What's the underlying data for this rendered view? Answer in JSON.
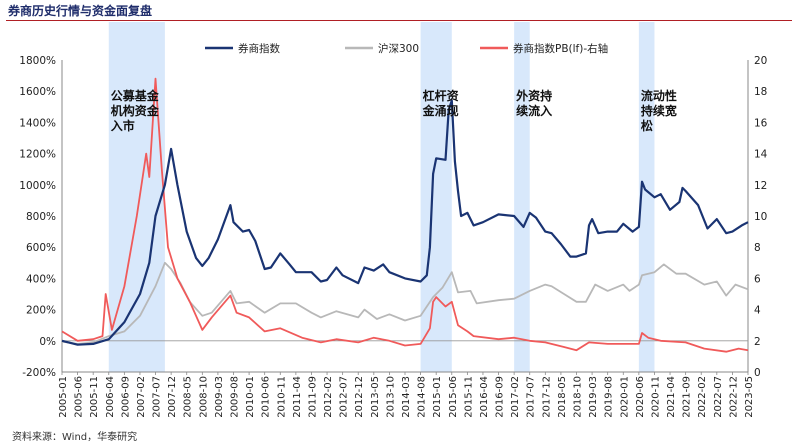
{
  "page": {
    "title": "券商历史行情与资金面复盘",
    "source": "资料来源：Wind，华泰研究"
  },
  "chart_data": {
    "type": "line",
    "legend": [
      "券商指数",
      "沪深300",
      "券商指数PB(lf)-右轴"
    ],
    "colors": {
      "broker": "#1a3473",
      "hs300": "#b8b8b8",
      "pb": "#f05a5a",
      "shade": "#d8e8fb"
    },
    "y_left": {
      "min": -200,
      "max": 1800,
      "step": 200,
      "suffix": "%"
    },
    "y_right": {
      "min": 0,
      "max": 20,
      "step": 2
    },
    "x_labels": [
      "2005-01",
      "2005-06",
      "2005-11",
      "2006-04",
      "2006-09",
      "2007-02",
      "2007-07",
      "2007-12",
      "2008-05",
      "2008-10",
      "2009-03",
      "2009-08",
      "2010-01",
      "2010-06",
      "2010-11",
      "2011-04",
      "2011-09",
      "2012-02",
      "2012-07",
      "2012-12",
      "2013-05",
      "2013-10",
      "2014-03",
      "2014-08",
      "2015-01",
      "2015-06",
      "2015-11",
      "2016-04",
      "2016-09",
      "2017-02",
      "2017-07",
      "2017-12",
      "2018-05",
      "2018-10",
      "2019-03",
      "2019-08",
      "2020-01",
      "2020-06",
      "2020-11",
      "2021-04",
      "2021-09",
      "2022-02",
      "2022-07",
      "2022-12",
      "2023-05"
    ],
    "shaded_periods": [
      {
        "start": "2006-04",
        "end": "2007-10",
        "label": "公募基金机构资金入市",
        "lines": [
          "公募基金",
          "机构资金",
          "入市"
        ]
      },
      {
        "start": "2014-08",
        "end": "2015-06",
        "label": "杠杆资金涌现",
        "lines": [
          "杠杆资",
          "金涌现"
        ]
      },
      {
        "start": "2017-02",
        "end": "2017-07",
        "label": "外资持续流入",
        "lines": [
          "外资持",
          "续流入"
        ]
      },
      {
        "start": "2020-06",
        "end": "2020-11",
        "label": "流动性持续宽松",
        "lines": [
          "流动性",
          "持续宽",
          "松"
        ]
      }
    ],
    "series": [
      {
        "name": "券商指数",
        "axis": "left",
        "points": [
          [
            "2005-01",
            0
          ],
          [
            "2005-06",
            -25
          ],
          [
            "2005-11",
            -20
          ],
          [
            "2006-04",
            10
          ],
          [
            "2006-09",
            120
          ],
          [
            "2007-02",
            300
          ],
          [
            "2007-05",
            500
          ],
          [
            "2007-07",
            800
          ],
          [
            "2007-10",
            1000
          ],
          [
            "2007-12",
            1230
          ],
          [
            "2008-02",
            1000
          ],
          [
            "2008-05",
            700
          ],
          [
            "2008-08",
            530
          ],
          [
            "2008-10",
            480
          ],
          [
            "2008-12",
            530
          ],
          [
            "2009-03",
            650
          ],
          [
            "2009-07",
            870
          ],
          [
            "2009-08",
            760
          ],
          [
            "2009-11",
            700
          ],
          [
            "2010-01",
            710
          ],
          [
            "2010-03",
            640
          ],
          [
            "2010-06",
            460
          ],
          [
            "2010-08",
            470
          ],
          [
            "2010-11",
            560
          ],
          [
            "2011-02",
            490
          ],
          [
            "2011-04",
            440
          ],
          [
            "2011-09",
            440
          ],
          [
            "2011-12",
            380
          ],
          [
            "2012-02",
            390
          ],
          [
            "2012-05",
            470
          ],
          [
            "2012-07",
            420
          ],
          [
            "2012-12",
            370
          ],
          [
            "2013-02",
            470
          ],
          [
            "2013-05",
            450
          ],
          [
            "2013-08",
            490
          ],
          [
            "2013-10",
            440
          ],
          [
            "2014-03",
            400
          ],
          [
            "2014-08",
            380
          ],
          [
            "2014-10",
            420
          ],
          [
            "2014-11",
            600
          ],
          [
            "2014-12",
            1070
          ],
          [
            "2015-01",
            1170
          ],
          [
            "2015-04",
            1160
          ],
          [
            "2015-05",
            1480
          ],
          [
            "2015-06",
            1540
          ],
          [
            "2015-07",
            1150
          ],
          [
            "2015-08",
            960
          ],
          [
            "2015-09",
            800
          ],
          [
            "2015-11",
            820
          ],
          [
            "2016-01",
            740
          ],
          [
            "2016-04",
            760
          ],
          [
            "2016-09",
            810
          ],
          [
            "2017-02",
            800
          ],
          [
            "2017-05",
            730
          ],
          [
            "2017-07",
            820
          ],
          [
            "2017-09",
            790
          ],
          [
            "2017-12",
            700
          ],
          [
            "2018-02",
            690
          ],
          [
            "2018-05",
            620
          ],
          [
            "2018-08",
            540
          ],
          [
            "2018-10",
            540
          ],
          [
            "2019-01",
            560
          ],
          [
            "2019-02",
            740
          ],
          [
            "2019-03",
            780
          ],
          [
            "2019-05",
            690
          ],
          [
            "2019-08",
            700
          ],
          [
            "2019-11",
            700
          ],
          [
            "2020-01",
            750
          ],
          [
            "2020-04",
            700
          ],
          [
            "2020-06",
            730
          ],
          [
            "2020-07",
            1020
          ],
          [
            "2020-08",
            970
          ],
          [
            "2020-11",
            920
          ],
          [
            "2021-01",
            940
          ],
          [
            "2021-04",
            840
          ],
          [
            "2021-07",
            890
          ],
          [
            "2021-08",
            980
          ],
          [
            "2021-09",
            960
          ],
          [
            "2022-01",
            870
          ],
          [
            "2022-04",
            720
          ],
          [
            "2022-07",
            780
          ],
          [
            "2022-10",
            690
          ],
          [
            "2022-12",
            700
          ],
          [
            "2023-03",
            740
          ],
          [
            "2023-05",
            760
          ]
        ]
      },
      {
        "name": "沪深300",
        "axis": "left",
        "points": [
          [
            "2005-01",
            -5
          ],
          [
            "2005-06",
            -20
          ],
          [
            "2005-11",
            -10
          ],
          [
            "2006-04",
            30
          ],
          [
            "2006-09",
            60
          ],
          [
            "2007-02",
            160
          ],
          [
            "2007-07",
            350
          ],
          [
            "2007-10",
            500
          ],
          [
            "2007-12",
            460
          ],
          [
            "2008-03",
            370
          ],
          [
            "2008-06",
            250
          ],
          [
            "2008-10",
            160
          ],
          [
            "2009-01",
            180
          ],
          [
            "2009-07",
            320
          ],
          [
            "2009-09",
            240
          ],
          [
            "2010-01",
            250
          ],
          [
            "2010-06",
            180
          ],
          [
            "2010-11",
            240
          ],
          [
            "2011-04",
            240
          ],
          [
            "2011-09",
            180
          ],
          [
            "2011-12",
            150
          ],
          [
            "2012-05",
            190
          ],
          [
            "2012-12",
            150
          ],
          [
            "2013-02",
            200
          ],
          [
            "2013-06",
            140
          ],
          [
            "2013-10",
            170
          ],
          [
            "2014-03",
            130
          ],
          [
            "2014-08",
            160
          ],
          [
            "2014-12",
            280
          ],
          [
            "2015-03",
            340
          ],
          [
            "2015-06",
            440
          ],
          [
            "2015-08",
            310
          ],
          [
            "2015-12",
            320
          ],
          [
            "2016-02",
            240
          ],
          [
            "2016-09",
            260
          ],
          [
            "2017-02",
            270
          ],
          [
            "2017-07",
            320
          ],
          [
            "2017-12",
            360
          ],
          [
            "2018-02",
            350
          ],
          [
            "2018-06",
            300
          ],
          [
            "2018-10",
            250
          ],
          [
            "2019-01",
            250
          ],
          [
            "2019-04",
            360
          ],
          [
            "2019-08",
            320
          ],
          [
            "2020-01",
            360
          ],
          [
            "2020-03",
            320
          ],
          [
            "2020-06",
            360
          ],
          [
            "2020-07",
            420
          ],
          [
            "2020-11",
            440
          ],
          [
            "2021-02",
            490
          ],
          [
            "2021-06",
            430
          ],
          [
            "2021-09",
            430
          ],
          [
            "2022-03",
            360
          ],
          [
            "2022-07",
            380
          ],
          [
            "2022-10",
            290
          ],
          [
            "2023-01",
            360
          ],
          [
            "2023-05",
            330
          ]
        ]
      },
      {
        "name": "券商指数PB(lf)-右轴",
        "axis": "right",
        "points": [
          [
            "2005-01",
            2.6
          ],
          [
            "2005-06",
            2.0
          ],
          [
            "2005-11",
            2.1
          ],
          [
            "2006-02",
            2.3
          ],
          [
            "2006-03",
            5.0
          ],
          [
            "2006-05",
            2.7
          ],
          [
            "2006-09",
            5.5
          ],
          [
            "2007-01",
            10.0
          ],
          [
            "2007-04",
            14.0
          ],
          [
            "2007-05",
            12.5
          ],
          [
            "2007-07",
            18.8
          ],
          [
            "2007-09",
            13.0
          ],
          [
            "2007-11",
            8.0
          ],
          [
            "2008-02",
            6.0
          ],
          [
            "2008-06",
            4.5
          ],
          [
            "2008-10",
            2.7
          ],
          [
            "2009-01",
            3.5
          ],
          [
            "2009-07",
            4.9
          ],
          [
            "2009-09",
            3.8
          ],
          [
            "2010-01",
            3.5
          ],
          [
            "2010-06",
            2.6
          ],
          [
            "2010-11",
            2.8
          ],
          [
            "2011-06",
            2.2
          ],
          [
            "2011-12",
            1.9
          ],
          [
            "2012-05",
            2.1
          ],
          [
            "2012-12",
            1.9
          ],
          [
            "2013-05",
            2.2
          ],
          [
            "2013-10",
            2.0
          ],
          [
            "2014-03",
            1.7
          ],
          [
            "2014-08",
            1.8
          ],
          [
            "2014-11",
            2.8
          ],
          [
            "2014-12",
            4.5
          ],
          [
            "2015-01",
            4.8
          ],
          [
            "2015-04",
            4.2
          ],
          [
            "2015-06",
            4.5
          ],
          [
            "2015-08",
            3.0
          ],
          [
            "2015-11",
            2.6
          ],
          [
            "2016-01",
            2.3
          ],
          [
            "2016-09",
            2.1
          ],
          [
            "2017-02",
            2.2
          ],
          [
            "2017-07",
            2.0
          ],
          [
            "2017-12",
            1.9
          ],
          [
            "2018-06",
            1.6
          ],
          [
            "2018-10",
            1.4
          ],
          [
            "2019-02",
            1.9
          ],
          [
            "2019-08",
            1.8
          ],
          [
            "2020-01",
            1.8
          ],
          [
            "2020-06",
            1.8
          ],
          [
            "2020-07",
            2.5
          ],
          [
            "2020-09",
            2.2
          ],
          [
            "2021-01",
            2.0
          ],
          [
            "2021-09",
            1.9
          ],
          [
            "2022-03",
            1.5
          ],
          [
            "2022-10",
            1.3
          ],
          [
            "2023-02",
            1.5
          ],
          [
            "2023-05",
            1.4
          ]
        ]
      }
    ]
  }
}
